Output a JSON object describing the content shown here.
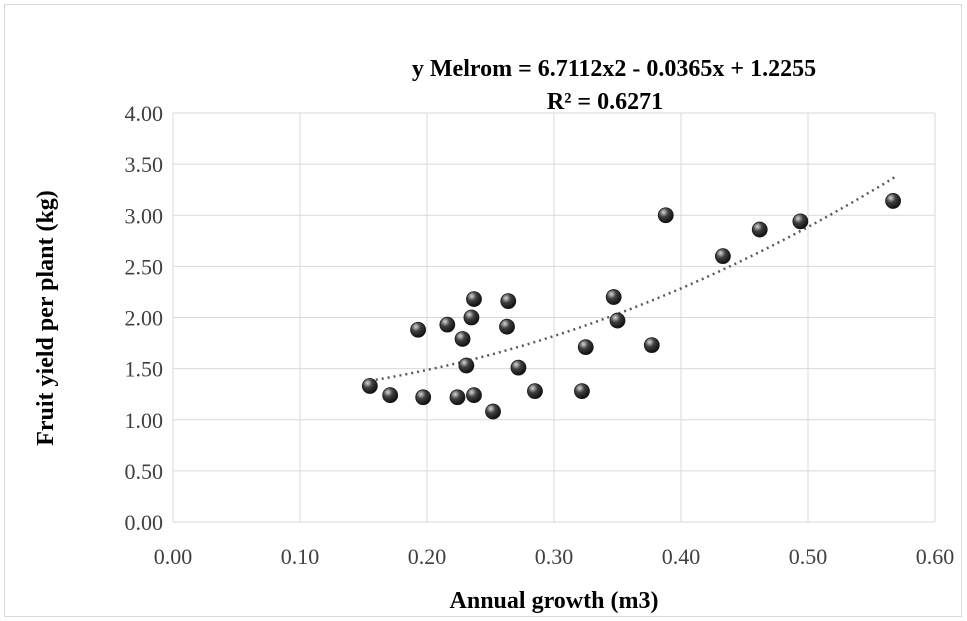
{
  "chart_data": {
    "type": "scatter",
    "title": "",
    "xlabel": "Annual growth (m3)",
    "ylabel": "Fruit yield per plant (kg)",
    "xlim": [
      0,
      0.6
    ],
    "ylim": [
      0,
      4
    ],
    "x_ticks": [
      "0.00",
      "0.10",
      "0.20",
      "0.30",
      "0.40",
      "0.50",
      "0.60"
    ],
    "y_ticks": [
      "0.00",
      "0.50",
      "1.00",
      "1.50",
      "2.00",
      "2.50",
      "3.00",
      "3.50",
      "4.00"
    ],
    "grid": true,
    "legend": "none",
    "annotation": {
      "equation": "y Melrom = 6.7112x2 - 0.0365x + 1.2255",
      "r_squared": "R² = 0.6271"
    },
    "trendline": {
      "type": "polynomial",
      "coefficients": [
        6.7112,
        -0.0365,
        1.2255
      ],
      "x_range": [
        0.155,
        0.568
      ]
    },
    "marker_color": "#404040",
    "points": [
      {
        "x": 0.155,
        "y": 1.33
      },
      {
        "x": 0.171,
        "y": 1.24
      },
      {
        "x": 0.193,
        "y": 1.88
      },
      {
        "x": 0.197,
        "y": 1.22
      },
      {
        "x": 0.216,
        "y": 1.93
      },
      {
        "x": 0.224,
        "y": 1.22
      },
      {
        "x": 0.228,
        "y": 1.79
      },
      {
        "x": 0.231,
        "y": 1.53
      },
      {
        "x": 0.235,
        "y": 2.0
      },
      {
        "x": 0.237,
        "y": 2.18
      },
      {
        "x": 0.237,
        "y": 1.24
      },
      {
        "x": 0.252,
        "y": 1.08
      },
      {
        "x": 0.263,
        "y": 1.91
      },
      {
        "x": 0.264,
        "y": 2.16
      },
      {
        "x": 0.272,
        "y": 1.51
      },
      {
        "x": 0.285,
        "y": 1.28
      },
      {
        "x": 0.322,
        "y": 1.28
      },
      {
        "x": 0.325,
        "y": 1.71
      },
      {
        "x": 0.347,
        "y": 2.2
      },
      {
        "x": 0.35,
        "y": 1.97
      },
      {
        "x": 0.377,
        "y": 1.73
      },
      {
        "x": 0.388,
        "y": 3.0
      },
      {
        "x": 0.433,
        "y": 2.6
      },
      {
        "x": 0.462,
        "y": 2.86
      },
      {
        "x": 0.494,
        "y": 2.94
      },
      {
        "x": 0.567,
        "y": 3.14
      }
    ]
  }
}
